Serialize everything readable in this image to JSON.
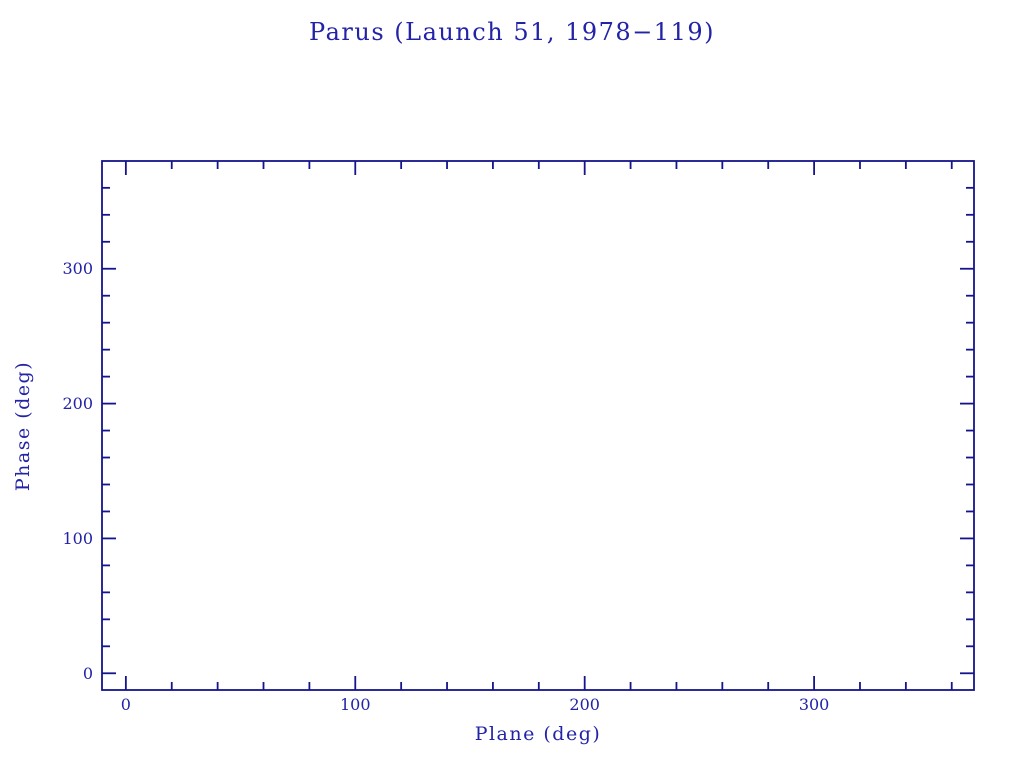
{
  "chart_data": {
    "type": "scatter",
    "title": "Parus (Launch 51, 1978−119)",
    "xlabel": "Plane (deg)",
    "ylabel": "Phase (deg)",
    "series": [],
    "x_axis": {
      "range": [
        -10.4,
        369.7
      ],
      "major_ticks": [
        0,
        100,
        200,
        300
      ],
      "major_tick_labels": [
        "0",
        "100",
        "200",
        "300"
      ],
      "minor_tick_step": 20
    },
    "y_axis": {
      "range": [
        -12.4,
        379.9
      ],
      "major_ticks": [
        0,
        100,
        200,
        300
      ],
      "major_tick_labels": [
        "0",
        "100",
        "200",
        "300"
      ],
      "minor_tick_step": 20
    },
    "grid": false,
    "frame_style": "box-with-inward-ticks",
    "legend": "none",
    "colors": {
      "axis": "#14148C",
      "text": "#2323A8",
      "background": "#FFFFFF"
    }
  }
}
